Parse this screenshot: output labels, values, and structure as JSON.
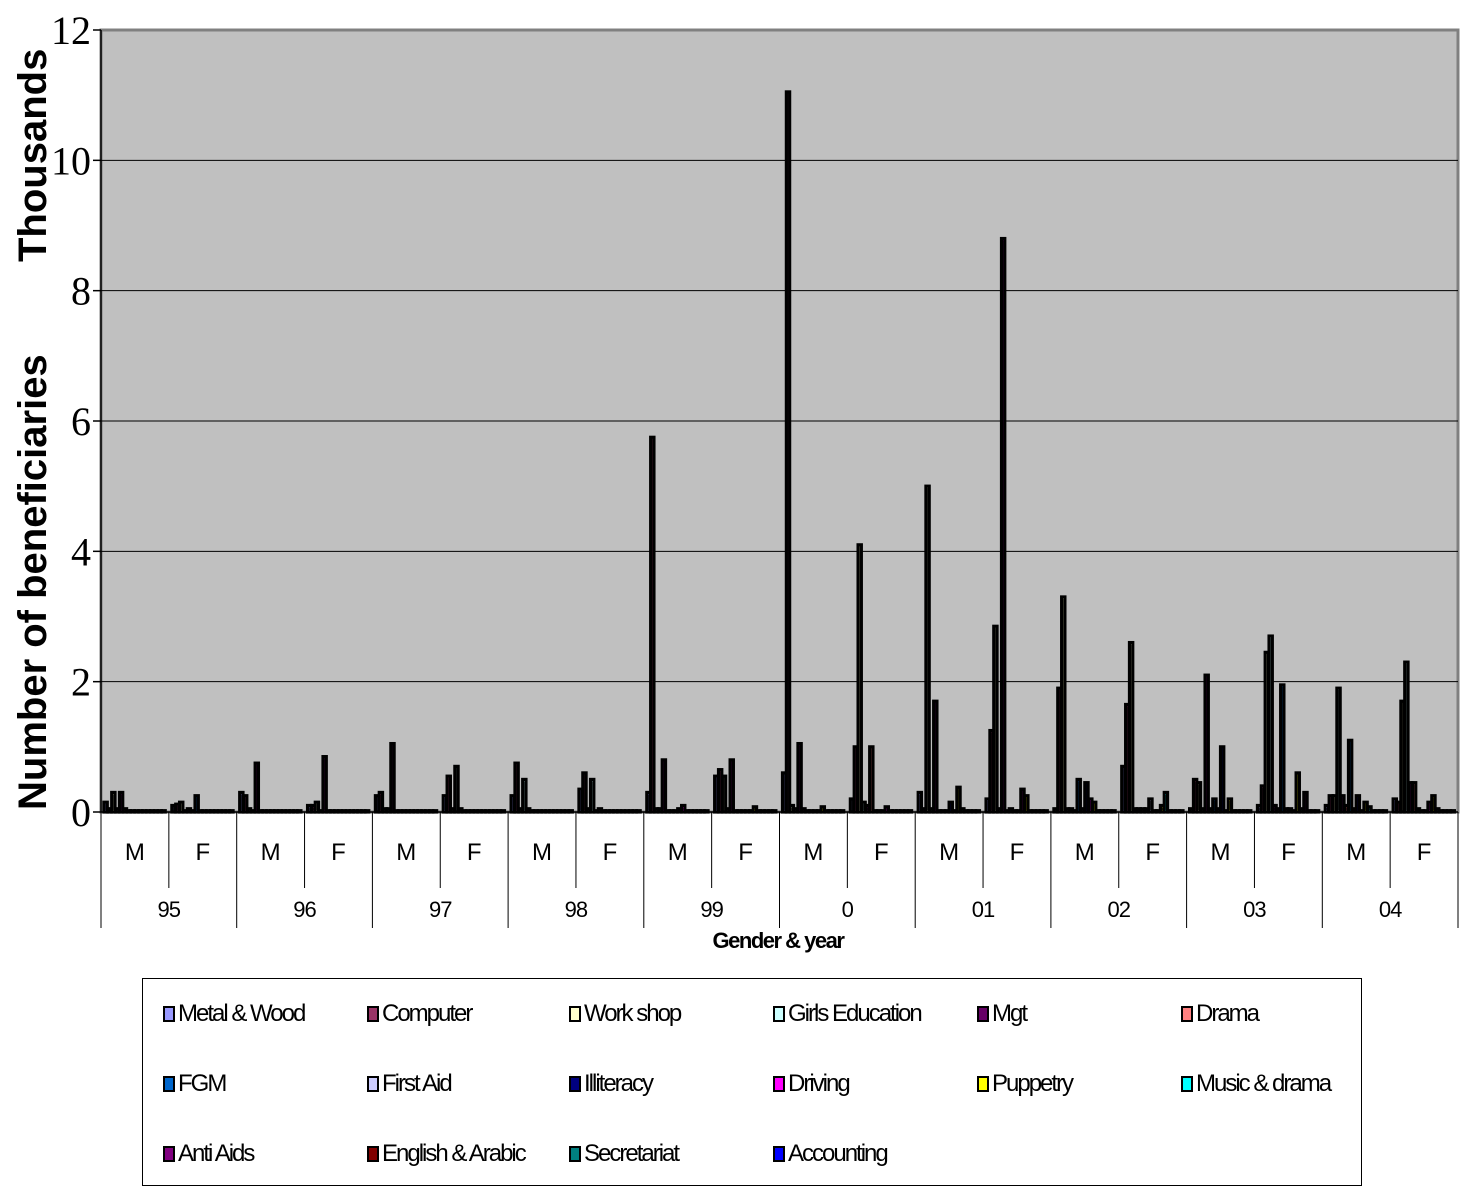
{
  "chart_data": {
    "type": "bar",
    "ylabel": "Number of beneficiaries",
    "yunit_label": "Thousands",
    "xlabel": "Gender & year",
    "ylim": [
      0,
      12
    ],
    "yticks": [
      "0",
      "2",
      "4",
      "6",
      "8",
      "10",
      "12"
    ],
    "grid": true,
    "plot_background": "#c0c0c0",
    "bar_color": "#000000",
    "legend_position": "bottom",
    "years": [
      "95",
      "96",
      "97",
      "98",
      "99",
      "0",
      "01",
      "02",
      "03",
      "04"
    ],
    "genders": [
      "M",
      "F"
    ],
    "categories": [
      "95 M",
      "95 F",
      "96 M",
      "96 F",
      "97 M",
      "97 F",
      "98 M",
      "98 F",
      "99 M",
      "99 F",
      "0 M",
      "0 F",
      "01 M",
      "01 F",
      "02 M",
      "02 F",
      "03 M",
      "03 F",
      "04 M",
      "04 F"
    ],
    "series": [
      {
        "name": "Metal & Wood",
        "color": "#9999ff",
        "values": [
          0.15,
          0.1,
          0.3,
          0.1,
          0.25,
          0.25,
          0.25,
          0.35,
          0.3,
          0.55,
          0.6,
          0.2,
          0.3,
          0.2,
          0.05,
          0.7,
          0.05,
          0.1,
          0.1,
          0.2
        ]
      },
      {
        "name": "Computer",
        "color": "#993366",
        "values": [
          0.05,
          0.12,
          0.25,
          0.1,
          0.3,
          0.55,
          0.75,
          0.6,
          5.75,
          0.65,
          11.05,
          1.0,
          0.05,
          1.25,
          1.9,
          1.65,
          0.5,
          0.4,
          0.25,
          0.15
        ]
      },
      {
        "name": "Work shop",
        "color": "#ffffcc",
        "values": [
          0.3,
          0.15,
          0.05,
          0.15,
          0.05,
          0.05,
          0.05,
          0.05,
          0.05,
          0.55,
          0.1,
          4.1,
          5.0,
          2.85,
          3.3,
          2.6,
          0.45,
          2.45,
          0.25,
          1.7
        ]
      },
      {
        "name": "Girls Education",
        "color": "#ccffff",
        "values": [
          0.05,
          0.02,
          0.02,
          0.02,
          0.05,
          0.7,
          0.5,
          0.5,
          0.05,
          0.05,
          0.05,
          0.15,
          0.05,
          0.05,
          0.05,
          0.05,
          0.05,
          2.7,
          1.9,
          2.3
        ]
      },
      {
        "name": "Mgt",
        "color": "#660066",
        "values": [
          0.3,
          0.05,
          0.75,
          0.85,
          1.05,
          0.05,
          0.05,
          0.02,
          0.8,
          0.8,
          1.05,
          0.1,
          1.7,
          8.8,
          0.05,
          0.05,
          2.1,
          0.1,
          0.25,
          0.45
        ]
      },
      {
        "name": "Drama",
        "color": "#ff8080",
        "values": [
          0.05,
          0.02,
          0.02,
          0.02,
          0.02,
          0.02,
          0.02,
          0.05,
          0.02,
          0.02,
          0.05,
          1.0,
          0.02,
          0.02,
          0.02,
          0.05,
          0.05,
          0.05,
          0.1,
          0.45
        ]
      },
      {
        "name": "FGM",
        "color": "#0066cc",
        "values": [
          0.02,
          0.25,
          0.02,
          0.02,
          0.02,
          0.02,
          0.02,
          0.02,
          0.02,
          0.02,
          0.02,
          0.02,
          0.02,
          0.05,
          0.5,
          0.05,
          0.2,
          1.95,
          1.1,
          0.05
        ]
      },
      {
        "name": "First Aid",
        "color": "#ccccff",
        "values": [
          0.02,
          0.02,
          0.02,
          0.02,
          0.02,
          0.02,
          0.02,
          0.02,
          0.02,
          0.02,
          0.02,
          0.02,
          0.02,
          0.02,
          0.05,
          0.2,
          0.05,
          0.05,
          0.05,
          0.02
        ]
      },
      {
        "name": "Illiteracy",
        "color": "#000080",
        "values": [
          0.02,
          0.02,
          0.02,
          0.02,
          0.02,
          0.02,
          0.02,
          0.02,
          0.05,
          0.02,
          0.02,
          0.02,
          0.15,
          0.02,
          0.45,
          0.02,
          1.0,
          0.05,
          0.25,
          0.02
        ]
      },
      {
        "name": "Driving",
        "color": "#ff00ff",
        "values": [
          0.02,
          0.02,
          0.02,
          0.02,
          0.02,
          0.02,
          0.02,
          0.02,
          0.1,
          0.02,
          0.02,
          0.08,
          0.02,
          0.35,
          0.2,
          0.02,
          0.02,
          0.02,
          0.02,
          0.15
        ]
      },
      {
        "name": "Puppetry",
        "color": "#ffff00",
        "values": [
          0.02,
          0.02,
          0.02,
          0.02,
          0.02,
          0.02,
          0.02,
          0.02,
          0.02,
          0.08,
          0.08,
          0.02,
          0.38,
          0.25,
          0.15,
          0.1,
          0.2,
          0.6,
          0.15,
          0.25
        ]
      },
      {
        "name": "Music & drama",
        "color": "#00ffff",
        "values": [
          0.02,
          0.02,
          0.02,
          0.02,
          0.02,
          0.02,
          0.02,
          0.02,
          0.02,
          0.02,
          0.02,
          0.02,
          0.05,
          0.02,
          0.02,
          0.3,
          0.02,
          0.05,
          0.08,
          0.05
        ]
      },
      {
        "name": "Anti Aids",
        "color": "#800080",
        "values": [
          0.02,
          0.02,
          0.02,
          0.02,
          0.02,
          0.02,
          0.02,
          0.02,
          0.02,
          0.02,
          0.02,
          0.02,
          0.02,
          0.02,
          0.02,
          0.02,
          0.02,
          0.3,
          0.02,
          0.02
        ]
      },
      {
        "name": "English & Arabic",
        "color": "#800000",
        "values": [
          0.02,
          0.02,
          0.02,
          0.02,
          0.02,
          0.02,
          0.02,
          0.02,
          0.02,
          0.02,
          0.02,
          0.02,
          0.02,
          0.02,
          0.02,
          0.02,
          0.02,
          0.02,
          0.02,
          0.02
        ]
      },
      {
        "name": "Secretariat",
        "color": "#008080",
        "values": [
          0.02,
          0.02,
          0.02,
          0.02,
          0.02,
          0.02,
          0.02,
          0.02,
          0.02,
          0.02,
          0.02,
          0.02,
          0.02,
          0.02,
          0.02,
          0.02,
          0.02,
          0.02,
          0.02,
          0.02
        ]
      },
      {
        "name": "Accounting",
        "color": "#0000ff",
        "values": [
          0.02,
          0.02,
          0.02,
          0.02,
          0.02,
          0.02,
          0.02,
          0.02,
          0.02,
          0.02,
          0.02,
          0.02,
          0.02,
          0.02,
          0.02,
          0.02,
          0.02,
          0.02,
          0.02,
          0.02
        ]
      }
    ]
  }
}
